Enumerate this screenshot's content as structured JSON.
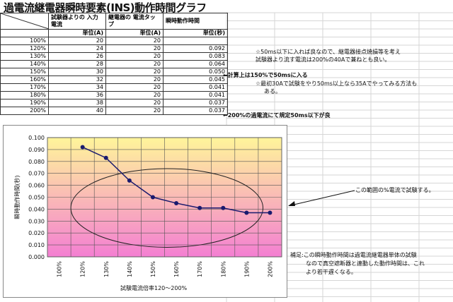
{
  "title": "過電流継電器瞬時要素(INS)動作時間グラフ",
  "table": {
    "headers": [
      "試験器よりの 入力電流",
      "継電器の 電流タップ",
      "瞬時動作時間"
    ],
    "units": [
      "単位(A)",
      "単位(A)",
      "単位(秒)"
    ],
    "rows": [
      {
        "pct": "100%",
        "input": "20",
        "tap": "20",
        "time": ""
      },
      {
        "pct": "120%",
        "input": "24",
        "tap": "20",
        "time": "0.092"
      },
      {
        "pct": "130%",
        "input": "26",
        "tap": "20",
        "time": "0.083"
      },
      {
        "pct": "140%",
        "input": "28",
        "tap": "20",
        "time": "0.064"
      },
      {
        "pct": "150%",
        "input": "30",
        "tap": "20",
        "time": "0.050"
      },
      {
        "pct": "160%",
        "input": "32",
        "tap": "20",
        "time": "0.045"
      },
      {
        "pct": "170%",
        "input": "34",
        "tap": "20",
        "time": "0.041"
      },
      {
        "pct": "180%",
        "input": "36",
        "tap": "20",
        "time": "0.041"
      },
      {
        "pct": "190%",
        "input": "38",
        "tap": "20",
        "time": "0.037"
      },
      {
        "pct": "200%",
        "input": "40",
        "tap": "20",
        "time": "0.037"
      }
    ]
  },
  "notes": {
    "note1_line1": "☆50ms以下に入れば良なので、継電器接点焼損等を考え",
    "note1_line2": "試験器より流す電流は200%の40Aで兼ねとも良い。",
    "calc_note": "←計算上は150%で50msに入る",
    "note2_line1": "☆最初30Aで試験をやり50ms以上なら35Aでやってみる方法も",
    "note2_line2": "ある。",
    "rated_note": "←200%の過電流にて規定50ms以下が良",
    "range_note": "この範囲の%電流で試験する。",
    "supp_line1": "補足:この瞬時動作時間は過電流継電器単体の試験",
    "supp_line2": "なので真空遮断器と連動した動作時間は、これ",
    "supp_line3": "より若干遅くなる。"
  },
  "colors": {
    "plot_top": "#fff59a",
    "plot_bottom": "#f47fd2",
    "series": "#1a1a6e"
  },
  "chart_data": {
    "type": "line",
    "categories": [
      "100%",
      "120%",
      "130%",
      "140%",
      "150%",
      "160%",
      "170%",
      "180%",
      "190%",
      "200%"
    ],
    "series": [
      {
        "values": [
          null,
          0.092,
          0.083,
          0.064,
          0.05,
          0.045,
          0.041,
          0.041,
          0.037,
          0.037
        ]
      }
    ],
    "ylim": [
      0,
      0.1
    ],
    "yticks": [
      "0.000",
      "0.010",
      "0.020",
      "0.030",
      "0.040",
      "0.050",
      "0.060",
      "0.070",
      "0.080",
      "0.090",
      "0.100"
    ],
    "xlabel": "試験電流倍率120〜200%",
    "ylabel": "瞬時動作時間(秒)",
    "grid": true,
    "legend": "none"
  }
}
